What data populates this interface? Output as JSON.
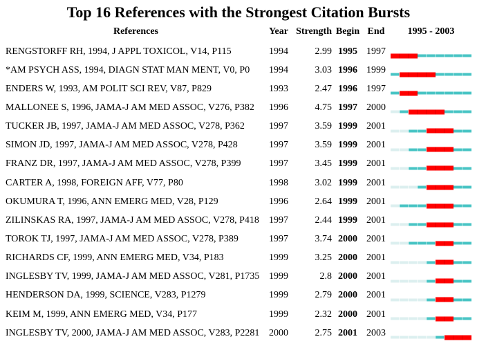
{
  "title": "Top 16 References with the Strongest Citation Bursts",
  "header": {
    "references": "References",
    "year": "Year",
    "strength": "Strength",
    "begin": "Begin",
    "end": "End",
    "timeline": "1995 - 2003"
  },
  "colors": {
    "burst_red": "#ff0000",
    "active_teal": "#48c4c4",
    "pre_publication_pale": "#dcefef",
    "text": "#000000",
    "background": "#ffffff"
  },
  "chart_data": {
    "type": "table",
    "title": "Top 16 References with the Strongest Citation Bursts",
    "columns": [
      "References",
      "Year",
      "Strength",
      "Begin",
      "End",
      "1995 - 2003"
    ],
    "timeline_range": [
      1995,
      2003
    ],
    "bar_encoding": {
      "red": "burst period from Begin to End year (thick segment)",
      "teal": "years from publication year to 2003 outside the burst",
      "pale": "timeline years before the reference's publication year"
    },
    "rows": [
      {
        "ref": "RENGSTORFF RH, 1994, J APPL TOXICOL, V14, P115",
        "year": 1994,
        "strength": "2.99",
        "begin": 1995,
        "end": 1997
      },
      {
        "ref": "*AM PSYCH ASS, 1994, DIAGN STAT MAN MENT, V0, P0",
        "year": 1994,
        "strength": "3.03",
        "begin": 1996,
        "end": 1999
      },
      {
        "ref": "ENDERS W, 1993, AM POLIT SCI REV, V87, P829",
        "year": 1993,
        "strength": "2.47",
        "begin": 1996,
        "end": 1997
      },
      {
        "ref": "MALLONEE S, 1996, JAMA-J AM MED ASSOC, V276, P382",
        "year": 1996,
        "strength": "4.75",
        "begin": 1997,
        "end": 2000
      },
      {
        "ref": "TUCKER JB, 1997, JAMA-J AM MED ASSOC, V278, P362",
        "year": 1997,
        "strength": "3.59",
        "begin": 1999,
        "end": 2001
      },
      {
        "ref": "SIMON JD, 1997, JAMA-J AM MED ASSOC, V278, P428",
        "year": 1997,
        "strength": "3.59",
        "begin": 1999,
        "end": 2001
      },
      {
        "ref": "FRANZ DR, 1997, JAMA-J AM MED ASSOC, V278, P399",
        "year": 1997,
        "strength": "3.45",
        "begin": 1999,
        "end": 2001
      },
      {
        "ref": "CARTER A, 1998, FOREIGN AFF, V77, P80",
        "year": 1998,
        "strength": "3.02",
        "begin": 1999,
        "end": 2001
      },
      {
        "ref": "OKUMURA T, 1996, ANN EMERG MED, V28, P129",
        "year": 1996,
        "strength": "2.64",
        "begin": 1999,
        "end": 2001
      },
      {
        "ref": "ZILINSKAS RA, 1997, JAMA-J AM MED ASSOC, V278, P418",
        "year": 1997,
        "strength": "2.44",
        "begin": 1999,
        "end": 2001
      },
      {
        "ref": "TOROK TJ, 1997, JAMA-J AM MED ASSOC, V278, P389",
        "year": 1997,
        "strength": "3.74",
        "begin": 2000,
        "end": 2001
      },
      {
        "ref": "RICHARDS CF, 1999, ANN EMERG MED, V34, P183",
        "year": 1999,
        "strength": "3.25",
        "begin": 2000,
        "end": 2001
      },
      {
        "ref": "INGLESBY TV, 1999, JAMA-J AM MED ASSOC, V281, P1735",
        "year": 1999,
        "strength": "2.8",
        "begin": 2000,
        "end": 2001
      },
      {
        "ref": "HENDERSON DA, 1999, SCIENCE, V283, P1279",
        "year": 1999,
        "strength": "2.79",
        "begin": 2000,
        "end": 2001
      },
      {
        "ref": "KEIM M, 1999, ANN EMERG MED, V34, P177",
        "year": 1999,
        "strength": "2.32",
        "begin": 2000,
        "end": 2001
      },
      {
        "ref": "INGLESBY TV, 2000, JAMA-J AM MED ASSOC, V283, P2281",
        "year": 2000,
        "strength": "2.75",
        "begin": 2001,
        "end": 2003
      }
    ]
  }
}
